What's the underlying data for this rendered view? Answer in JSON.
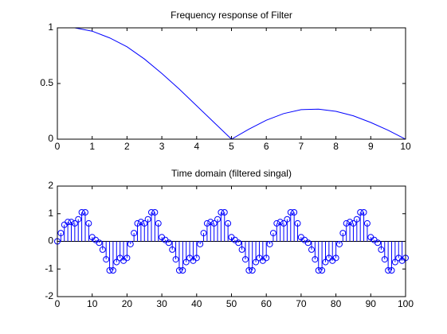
{
  "chart_data": [
    {
      "type": "line",
      "title": "Frequency response of Filter",
      "x": [
        0,
        0.5,
        1,
        1.5,
        2,
        2.5,
        3,
        3.5,
        4,
        4.5,
        5,
        5.5,
        6,
        6.5,
        7,
        7.5,
        8,
        8.5,
        9,
        9.5,
        10
      ],
      "series": [
        {
          "color": "#0000ff",
          "values": [
            1,
            1.0,
            0.97,
            0.91,
            0.83,
            0.72,
            0.59,
            0.45,
            0.3,
            0.15,
            0,
            0.09,
            0.17,
            0.23,
            0.265,
            0.27,
            0.25,
            0.21,
            0.15,
            0.08,
            0
          ]
        }
      ],
      "xlim": [
        0,
        10
      ],
      "xticks": [
        0,
        1,
        2,
        3,
        4,
        5,
        6,
        7,
        8,
        9,
        10
      ],
      "ylim": [
        0,
        1
      ],
      "yticks": [
        0,
        0.5,
        1
      ]
    },
    {
      "type": "stem",
      "title": "Time domain (filtered singal)",
      "x": [
        0,
        1,
        2,
        3,
        4,
        5,
        6,
        7,
        8,
        9,
        10,
        11,
        12,
        13,
        14,
        15,
        16,
        17,
        18,
        19,
        20,
        21,
        22,
        23,
        24,
        25,
        26,
        27,
        28,
        29,
        30,
        31,
        32,
        33,
        34,
        35,
        36,
        37,
        38,
        39,
        40,
        41,
        42,
        43,
        44,
        45,
        46,
        47,
        48,
        49,
        50,
        51,
        52,
        53,
        54,
        55,
        56,
        57,
        58,
        59,
        60,
        61,
        62,
        63,
        64,
        65,
        66,
        67,
        68,
        69,
        70,
        71,
        72,
        73,
        74,
        75,
        76,
        77,
        78,
        79,
        80,
        81,
        82,
        83,
        84,
        85,
        86,
        87,
        88,
        89,
        90,
        91,
        92,
        93,
        94,
        95,
        96,
        97,
        98,
        99,
        100
      ],
      "series": [
        {
          "color": "#0000ff",
          "values": [
            0,
            0.3,
            0.6,
            0.7,
            0.7,
            0.65,
            0.8,
            1.05,
            1.05,
            0.65,
            0.15,
            0.05,
            -0.05,
            -0.3,
            -0.65,
            -1.05,
            -1.05,
            -0.75,
            -0.6,
            -0.7,
            -0.6,
            -0.1,
            0.3,
            0.65,
            0.7,
            0.65,
            0.8,
            1.05,
            1.05,
            0.65,
            0.15,
            0.05,
            -0.05,
            -0.3,
            -0.65,
            -1.05,
            -1.05,
            -0.75,
            -0.6,
            -0.7,
            -0.6,
            -0.1,
            0.3,
            0.65,
            0.7,
            0.65,
            0.8,
            1.05,
            1.05,
            0.65,
            0.15,
            0.05,
            -0.05,
            -0.3,
            -0.65,
            -1.05,
            -1.05,
            -0.75,
            -0.6,
            -0.7,
            -0.6,
            -0.1,
            0.3,
            0.65,
            0.7,
            0.65,
            0.8,
            1.05,
            1.05,
            0.65,
            0.15,
            0.05,
            -0.05,
            -0.3,
            -0.65,
            -1.05,
            -1.05,
            -0.75,
            -0.6,
            -0.7,
            -0.6,
            -0.1,
            0.3,
            0.65,
            0.7,
            0.65,
            0.8,
            1.05,
            1.05,
            0.65,
            0.15,
            0.05,
            -0.05,
            -0.3,
            -0.65,
            -1.05,
            -1.05,
            -0.75,
            -0.6,
            -0.7,
            -0.6
          ]
        }
      ],
      "xlim": [
        0,
        100
      ],
      "xticks": [
        0,
        10,
        20,
        30,
        40,
        50,
        60,
        70,
        80,
        90,
        100
      ],
      "ylim": [
        -2,
        2
      ],
      "yticks": [
        -2,
        -1,
        0,
        1,
        2
      ]
    }
  ]
}
